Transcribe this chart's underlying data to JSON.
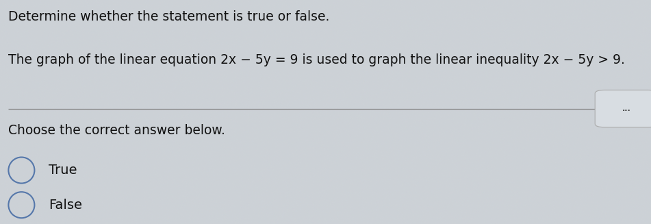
{
  "background_color": "#c8cdd2",
  "text_color": "#111111",
  "line1": "Determine whether the statement is true or false.",
  "line2": "The graph of the linear equation 2x − 5y = 9 is used to graph the linear inequality 2x − 5y > 9.",
  "divider_color": "#888888",
  "choose_text": "Choose the correct answer below.",
  "option1": "True",
  "option2": "False",
  "font_size_line1": 13.5,
  "font_size_line2": 13.5,
  "font_size_choose": 13.5,
  "font_size_options": 14,
  "circle_color": "#5577aa",
  "dots_text": "...",
  "dots_button_facecolor": "#d8dde2",
  "dots_button_edgecolor": "#aaaaaa"
}
